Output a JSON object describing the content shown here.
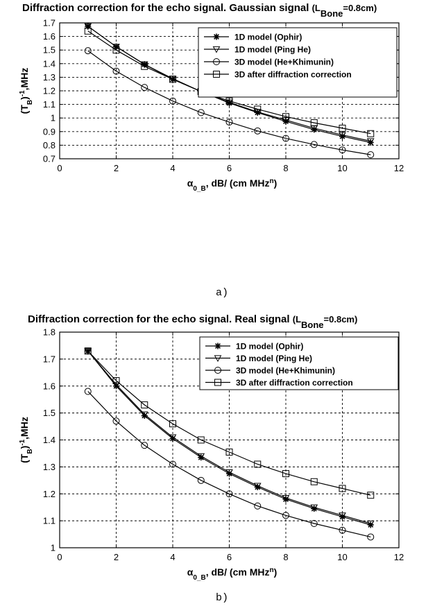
{
  "chart_data": [
    {
      "type": "line",
      "title": "Diffraction correction for the echo signal. Gaussian signal",
      "title_suffix": "(L",
      "title_sub": "Bone",
      "title_end": "=0.8cm)",
      "xlabel": "α",
      "xlabel_sub": "0_B",
      "xlabel_rest": ", dB/ (cm MHz",
      "xlabel_sup": "n",
      "xlabel_end": ")",
      "ylabel": "(T",
      "ylabel_sub": "B",
      "ylabel_mid": ")",
      "ylabel_sup": "-1",
      "ylabel_end": ",MHz",
      "xlim": [
        0,
        12
      ],
      "ylim": [
        0.7,
        1.7
      ],
      "xticks": [
        0,
        2,
        4,
        6,
        8,
        10,
        12
      ],
      "yticks": [
        0.7,
        0.8,
        0.9,
        1,
        1.1,
        1.2,
        1.3,
        1.4,
        1.5,
        1.6,
        1.7
      ],
      "grid": true,
      "legend_position": "top-right",
      "caption": "a)",
      "x": [
        1,
        2,
        3,
        4,
        5,
        6,
        7,
        8,
        9,
        10,
        11
      ],
      "series": [
        {
          "name": "1D model (Ophir)",
          "marker": "star",
          "values": [
            1.675,
            1.525,
            1.395,
            1.285,
            1.195,
            1.11,
            1.04,
            0.975,
            0.915,
            0.865,
            0.82
          ]
        },
        {
          "name": "1D model (Ping He)",
          "marker": "triangle-down",
          "values": [
            1.675,
            1.525,
            1.395,
            1.29,
            1.195,
            1.115,
            1.045,
            0.985,
            0.925,
            0.875,
            0.83
          ]
        },
        {
          "name": "3D model (He+Khimunin)",
          "marker": "circle",
          "values": [
            1.495,
            1.345,
            1.225,
            1.125,
            1.04,
            0.97,
            0.905,
            0.85,
            0.805,
            0.765,
            0.73
          ]
        },
        {
          "name": "3D after diffraction correction",
          "marker": "square",
          "values": [
            1.64,
            1.5,
            1.38,
            1.285,
            1.195,
            1.125,
            1.065,
            1.01,
            0.965,
            0.925,
            0.885
          ]
        }
      ]
    },
    {
      "type": "line",
      "title": "Diffraction correction for the echo signal. Real signal",
      "title_suffix": "(L",
      "title_sub": "Bone",
      "title_end": "=0.8cm)",
      "xlabel": "α",
      "xlabel_sub": "0_B",
      "xlabel_rest": ", dB/ (cm MHz",
      "xlabel_sup": "n",
      "xlabel_end": ")",
      "ylabel": "(T",
      "ylabel_sub": "B",
      "ylabel_mid": ")",
      "ylabel_sup": "-1",
      "ylabel_end": ",MHz",
      "xlim": [
        0,
        12
      ],
      "ylim": [
        1,
        1.8
      ],
      "xticks": [
        0,
        2,
        4,
        6,
        8,
        10,
        12
      ],
      "yticks": [
        1,
        1.1,
        1.2,
        1.3,
        1.4,
        1.5,
        1.6,
        1.7,
        1.8
      ],
      "grid": true,
      "legend_position": "top-right",
      "caption": "b)",
      "x": [
        1,
        2,
        3,
        4,
        5,
        6,
        7,
        8,
        9,
        10,
        11
      ],
      "series": [
        {
          "name": "1D model (Ophir)",
          "marker": "star",
          "values": [
            1.73,
            1.6,
            1.49,
            1.405,
            1.335,
            1.275,
            1.225,
            1.18,
            1.145,
            1.115,
            1.085
          ]
        },
        {
          "name": "1D model (Ping He)",
          "marker": "triangle-down",
          "values": [
            1.73,
            1.605,
            1.495,
            1.41,
            1.34,
            1.28,
            1.23,
            1.185,
            1.15,
            1.12,
            1.09
          ]
        },
        {
          "name": "3D model (He+Khimunin)",
          "marker": "circle",
          "values": [
            1.58,
            1.47,
            1.38,
            1.31,
            1.25,
            1.2,
            1.155,
            1.12,
            1.09,
            1.065,
            1.04
          ]
        },
        {
          "name": "3D after diffraction correction",
          "marker": "square",
          "values": [
            1.73,
            1.62,
            1.53,
            1.46,
            1.4,
            1.355,
            1.31,
            1.275,
            1.245,
            1.22,
            1.195
          ]
        }
      ]
    }
  ]
}
